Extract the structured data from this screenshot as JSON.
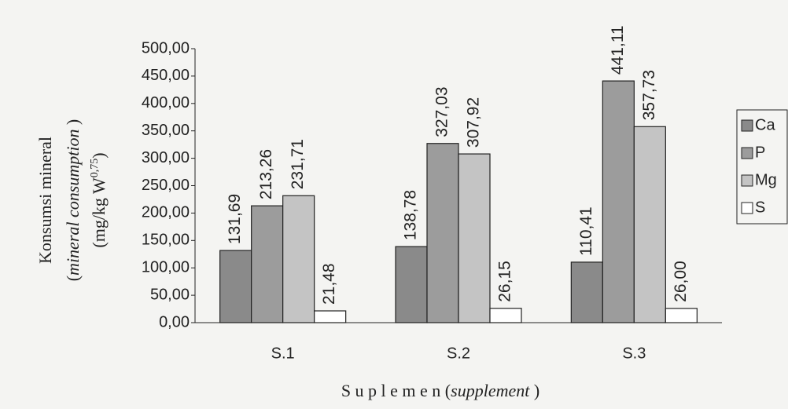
{
  "chart_data": {
    "type": "bar",
    "ylabel": [
      [
        "Konsumsi mineral"
      ],
      [
        "(",
        "mineral consumption",
        " )"
      ],
      [
        "(mg/kg W",
        "0,75",
        ")"
      ]
    ],
    "xlabel": [
      "S u p l e m e n (",
      "supplement",
      " )"
    ],
    "categories": [
      "S.1",
      "S.2",
      "S.3"
    ],
    "series": [
      {
        "name": "Ca",
        "color": "#8a8a8a",
        "values": [
          131.69,
          138.78,
          110.41
        ],
        "value_labels": [
          "131,69",
          "138,78",
          "110,41"
        ]
      },
      {
        "name": "P",
        "color": "#9c9c9c",
        "values": [
          213.26,
          327.03,
          441.11
        ],
        "value_labels": [
          "213,26",
          "327,03",
          "441,11"
        ]
      },
      {
        "name": "Mg",
        "color": "#c4c4c4",
        "values": [
          231.71,
          307.92,
          357.73
        ],
        "value_labels": [
          "231,71",
          "307,92",
          "357,73"
        ]
      },
      {
        "name": "S",
        "color": "#ffffff",
        "values": [
          21.48,
          26.15,
          26.0
        ],
        "value_labels": [
          "21,48",
          "26,15",
          "26,00"
        ]
      }
    ],
    "ylim": [
      0,
      500
    ],
    "yticks": [
      {
        "value": 0,
        "label": "0,00"
      },
      {
        "value": 50,
        "label": "50,00"
      },
      {
        "value": 100,
        "label": "100,00"
      },
      {
        "value": 150,
        "label": "150,00"
      },
      {
        "value": 200,
        "label": "200,00"
      },
      {
        "value": 250,
        "label": "250,00"
      },
      {
        "value": 300,
        "label": "300,00"
      },
      {
        "value": 350,
        "label": "350,00"
      },
      {
        "value": 400,
        "label": "400,00"
      },
      {
        "value": 450,
        "label": "450,00"
      },
      {
        "value": 500,
        "label": "500,00"
      }
    ],
    "grid": false,
    "legend": "right"
  }
}
